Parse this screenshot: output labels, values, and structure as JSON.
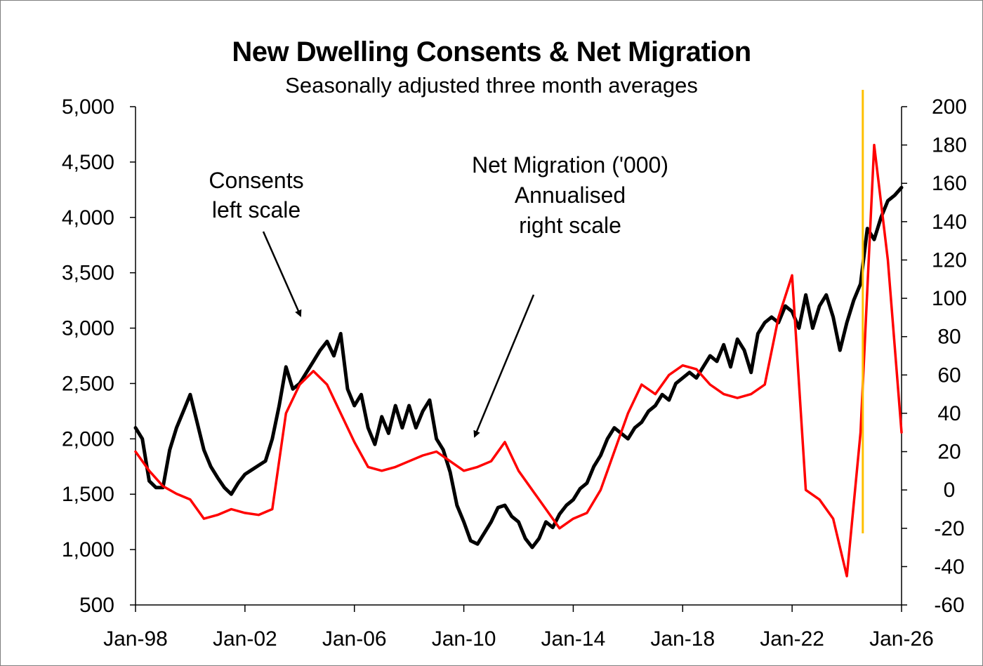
{
  "chart_data": {
    "type": "line",
    "title": "New Dwelling Consents & Net Migration",
    "subtitle": "Seasonally adjusted three month averages",
    "x_ticks": [
      "Jan-98",
      "Jan-02",
      "Jan-06",
      "Jan-10",
      "Jan-14",
      "Jan-18",
      "Jan-22",
      "Jan-26"
    ],
    "x_range": [
      "1998-01",
      "2026-01"
    ],
    "y_left": {
      "ticks": [
        "500",
        "1,000",
        "1,500",
        "2,000",
        "2,500",
        "3,000",
        "3,500",
        "4,000",
        "4,500",
        "5,000"
      ],
      "range": [
        500,
        5000
      ]
    },
    "y_right": {
      "ticks": [
        "-60",
        "-40",
        "-20",
        "0",
        "20",
        "40",
        "60",
        "80",
        "100",
        "120",
        "140",
        "160",
        "180",
        "200"
      ],
      "range": [
        -60,
        200
      ]
    },
    "grid": false,
    "annotations": [
      {
        "id": "consents",
        "lines": [
          "Consents",
          "left scale"
        ]
      },
      {
        "id": "migration",
        "lines": [
          "Net Migration ('000)",
          "Annualised",
          "right scale"
        ]
      }
    ],
    "reference_line": {
      "x": "2024-08",
      "color": "#FFC000"
    },
    "series": [
      {
        "id": "consents",
        "axis": "left",
        "color": "#000000",
        "points": [
          [
            "1998-01",
            2100
          ],
          [
            "1998-04",
            2000
          ],
          [
            "1998-07",
            1620
          ],
          [
            "1998-10",
            1560
          ],
          [
            "1999-01",
            1560
          ],
          [
            "1999-04",
            1900
          ],
          [
            "1999-07",
            2100
          ],
          [
            "1999-10",
            2250
          ],
          [
            "2000-01",
            2400
          ],
          [
            "2000-04",
            2150
          ],
          [
            "2000-07",
            1900
          ],
          [
            "2000-10",
            1750
          ],
          [
            "2001-01",
            1650
          ],
          [
            "2001-04",
            1560
          ],
          [
            "2001-07",
            1500
          ],
          [
            "2001-10",
            1600
          ],
          [
            "2002-01",
            1680
          ],
          [
            "2002-04",
            1720
          ],
          [
            "2002-07",
            1760
          ],
          [
            "2002-10",
            1800
          ],
          [
            "2003-01",
            2000
          ],
          [
            "2003-04",
            2300
          ],
          [
            "2003-07",
            2650
          ],
          [
            "2003-10",
            2450
          ],
          [
            "2004-01",
            2500
          ],
          [
            "2004-04",
            2600
          ],
          [
            "2004-07",
            2700
          ],
          [
            "2004-10",
            2800
          ],
          [
            "2005-01",
            2880
          ],
          [
            "2005-04",
            2750
          ],
          [
            "2005-07",
            2950
          ],
          [
            "2005-10",
            2450
          ],
          [
            "2006-01",
            2300
          ],
          [
            "2006-04",
            2400
          ],
          [
            "2006-07",
            2100
          ],
          [
            "2006-10",
            1950
          ],
          [
            "2007-01",
            2200
          ],
          [
            "2007-04",
            2050
          ],
          [
            "2007-07",
            2300
          ],
          [
            "2007-10",
            2100
          ],
          [
            "2008-01",
            2300
          ],
          [
            "2008-04",
            2100
          ],
          [
            "2008-07",
            2250
          ],
          [
            "2008-10",
            2350
          ],
          [
            "2009-01",
            2000
          ],
          [
            "2009-04",
            1900
          ],
          [
            "2009-07",
            1700
          ],
          [
            "2009-10",
            1400
          ],
          [
            "2010-01",
            1250
          ],
          [
            "2010-04",
            1080
          ],
          [
            "2010-07",
            1050
          ],
          [
            "2010-10",
            1150
          ],
          [
            "2011-01",
            1250
          ],
          [
            "2011-04",
            1380
          ],
          [
            "2011-07",
            1400
          ],
          [
            "2011-10",
            1300
          ],
          [
            "2012-01",
            1250
          ],
          [
            "2012-04",
            1100
          ],
          [
            "2012-07",
            1020
          ],
          [
            "2012-10",
            1100
          ],
          [
            "2013-01",
            1250
          ],
          [
            "2013-04",
            1200
          ],
          [
            "2013-07",
            1320
          ],
          [
            "2013-10",
            1400
          ],
          [
            "2014-01",
            1450
          ],
          [
            "2014-04",
            1550
          ],
          [
            "2014-07",
            1600
          ],
          [
            "2014-10",
            1750
          ],
          [
            "2015-01",
            1850
          ],
          [
            "2015-04",
            2000
          ],
          [
            "2015-07",
            2100
          ],
          [
            "2015-10",
            2050
          ],
          [
            "2016-01",
            2000
          ],
          [
            "2016-04",
            2100
          ],
          [
            "2016-07",
            2150
          ],
          [
            "2016-10",
            2250
          ],
          [
            "2017-01",
            2300
          ],
          [
            "2017-04",
            2400
          ],
          [
            "2017-07",
            2350
          ],
          [
            "2017-10",
            2500
          ],
          [
            "2018-01",
            2550
          ],
          [
            "2018-04",
            2600
          ],
          [
            "2018-07",
            2550
          ],
          [
            "2018-10",
            2650
          ],
          [
            "2019-01",
            2750
          ],
          [
            "2019-04",
            2700
          ],
          [
            "2019-07",
            2850
          ],
          [
            "2019-10",
            2650
          ],
          [
            "2020-01",
            2900
          ],
          [
            "2020-04",
            2800
          ],
          [
            "2020-07",
            2600
          ],
          [
            "2020-10",
            2950
          ],
          [
            "2021-01",
            3050
          ],
          [
            "2021-04",
            3100
          ],
          [
            "2021-07",
            3050
          ],
          [
            "2021-10",
            3200
          ],
          [
            "2022-01",
            3150
          ],
          [
            "2022-04",
            3000
          ],
          [
            "2022-07",
            3300
          ],
          [
            "2022-10",
            3000
          ],
          [
            "2023-01",
            3200
          ],
          [
            "2023-04",
            3300
          ],
          [
            "2023-07",
            3100
          ],
          [
            "2023-10",
            2800
          ],
          [
            "2024-01",
            3050
          ],
          [
            "2024-04",
            3250
          ],
          [
            "2024-07",
            3400
          ],
          [
            "2024-10",
            3900
          ],
          [
            "2025-01",
            3800
          ],
          [
            "2025-04",
            4000
          ],
          [
            "2025-07",
            4150
          ],
          [
            "2025-10",
            4200
          ],
          [
            "2026-01",
            4270
          ]
        ]
      },
      {
        "id": "migration",
        "axis": "right",
        "color": "#FF0000",
        "points": [
          [
            "1998-01",
            20
          ],
          [
            "1998-07",
            10
          ],
          [
            "1999-01",
            2
          ],
          [
            "1999-07",
            -2
          ],
          [
            "2000-01",
            -5
          ],
          [
            "2000-07",
            -15
          ],
          [
            "2001-01",
            -13
          ],
          [
            "2001-07",
            -10
          ],
          [
            "2002-01",
            -12
          ],
          [
            "2002-07",
            -13
          ],
          [
            "2003-01",
            -10
          ],
          [
            "2003-07",
            40
          ],
          [
            "2004-01",
            55
          ],
          [
            "2004-07",
            62
          ],
          [
            "2005-01",
            55
          ],
          [
            "2005-07",
            40
          ],
          [
            "2006-01",
            25
          ],
          [
            "2006-07",
            12
          ],
          [
            "2007-01",
            10
          ],
          [
            "2007-07",
            12
          ],
          [
            "2008-01",
            15
          ],
          [
            "2008-07",
            18
          ],
          [
            "2009-01",
            20
          ],
          [
            "2009-07",
            15
          ],
          [
            "2010-01",
            10
          ],
          [
            "2010-07",
            12
          ],
          [
            "2011-01",
            15
          ],
          [
            "2011-07",
            25
          ],
          [
            "2012-01",
            10
          ],
          [
            "2012-07",
            0
          ],
          [
            "2013-01",
            -10
          ],
          [
            "2013-07",
            -20
          ],
          [
            "2014-01",
            -15
          ],
          [
            "2014-07",
            -12
          ],
          [
            "2015-01",
            0
          ],
          [
            "2015-07",
            20
          ],
          [
            "2016-01",
            40
          ],
          [
            "2016-07",
            55
          ],
          [
            "2017-01",
            50
          ],
          [
            "2017-07",
            60
          ],
          [
            "2018-01",
            65
          ],
          [
            "2018-07",
            63
          ],
          [
            "2019-01",
            55
          ],
          [
            "2019-07",
            50
          ],
          [
            "2020-01",
            48
          ],
          [
            "2020-07",
            50
          ],
          [
            "2021-01",
            55
          ],
          [
            "2021-07",
            90
          ],
          [
            "2022-01",
            112
          ],
          [
            "2022-07",
            0
          ],
          [
            "2023-01",
            -5
          ],
          [
            "2023-07",
            -15
          ],
          [
            "2024-01",
            -45
          ],
          [
            "2024-07",
            30
          ],
          [
            "2025-01",
            180
          ],
          [
            "2025-07",
            120
          ],
          [
            "2026-01",
            30
          ]
        ]
      }
    ]
  }
}
